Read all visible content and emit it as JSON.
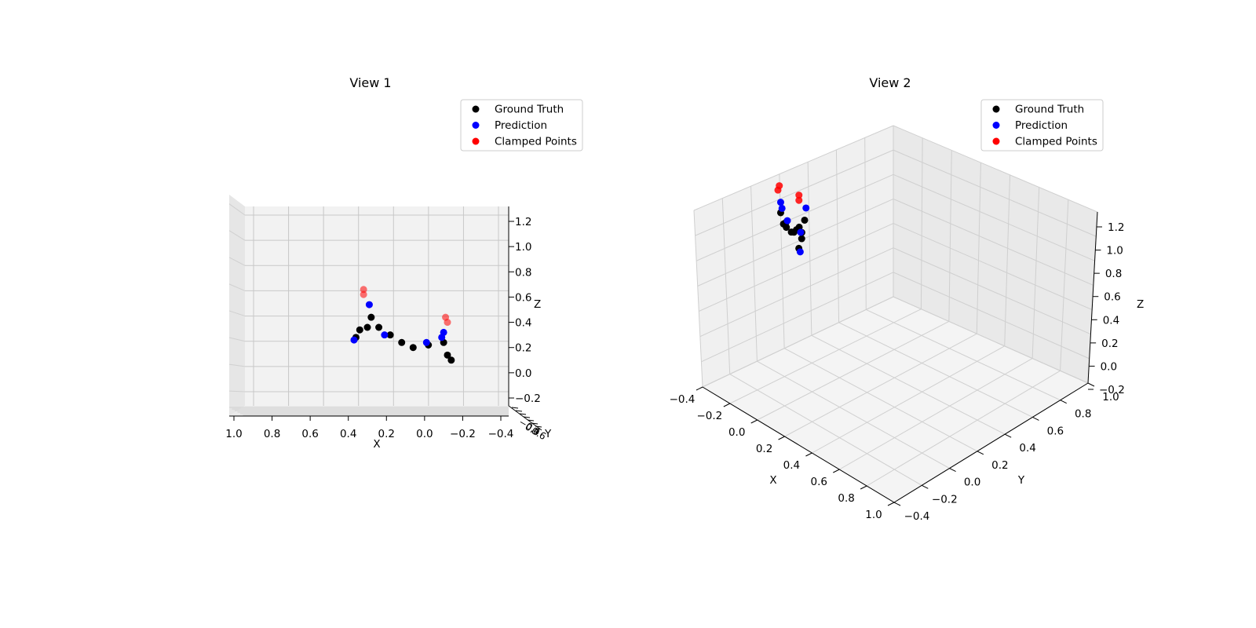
{
  "chart_data": [
    {
      "type": "scatter",
      "title": "View 1",
      "xlabel": "X",
      "ylabel": "Y",
      "zlabel": "Z",
      "xlim": [
        -0.4,
        1.0
      ],
      "zlim": [
        -0.2,
        1.2
      ],
      "x_ticks": [
        "1.0",
        "0.8",
        "0.6",
        "0.4",
        "0.2",
        "0.0",
        "−0.2",
        "−0.4"
      ],
      "z_ticks": [
        "−0.2",
        "0.0",
        "0.2",
        "0.4",
        "0.6",
        "0.8",
        "1.0",
        "1.2"
      ],
      "grid": true,
      "legend_position": "top-right",
      "series": [
        {
          "name": "Ground Truth",
          "color": "#000000",
          "points": [
            {
              "x": 0.36,
              "z": 0.28
            },
            {
              "x": 0.34,
              "z": 0.34
            },
            {
              "x": 0.3,
              "z": 0.36
            },
            {
              "x": 0.28,
              "z": 0.44
            },
            {
              "x": 0.24,
              "z": 0.36
            },
            {
              "x": 0.18,
              "z": 0.3
            },
            {
              "x": 0.12,
              "z": 0.24
            },
            {
              "x": 0.06,
              "z": 0.2
            },
            {
              "x": -0.02,
              "z": 0.22
            },
            {
              "x": -0.1,
              "z": 0.24
            },
            {
              "x": -0.12,
              "z": 0.14
            },
            {
              "x": -0.14,
              "z": 0.1
            }
          ]
        },
        {
          "name": "Prediction",
          "color": "#0000ff",
          "points": [
            {
              "x": 0.37,
              "z": 0.26
            },
            {
              "x": 0.29,
              "z": 0.54
            },
            {
              "x": 0.21,
              "z": 0.3
            },
            {
              "x": -0.01,
              "z": 0.24
            },
            {
              "x": -0.09,
              "z": 0.28
            },
            {
              "x": -0.1,
              "z": 0.32
            }
          ]
        },
        {
          "name": "Clamped Points",
          "color": "#ff0000",
          "points": [
            {
              "x": 0.32,
              "z": 0.66
            },
            {
              "x": 0.32,
              "z": 0.62
            },
            {
              "x": -0.11,
              "z": 0.44
            },
            {
              "x": -0.12,
              "z": 0.4
            }
          ]
        }
      ]
    },
    {
      "type": "scatter",
      "title": "View 2",
      "xlabel": "X",
      "ylabel": "Y",
      "zlabel": "Z",
      "xlim": [
        -0.4,
        1.0
      ],
      "ylim": [
        -0.4,
        1.0
      ],
      "zlim": [
        -0.2,
        1.2
      ],
      "x_ticks": [
        "−0.4",
        "−0.2",
        "0.0",
        "0.2",
        "0.4",
        "0.6",
        "0.8",
        "1.0"
      ],
      "y_ticks": [
        "−0.4",
        "−0.2",
        "0.0",
        "0.2",
        "0.4",
        "0.6",
        "0.8",
        "1.0"
      ],
      "z_ticks": [
        "−0.2",
        "0.0",
        "0.2",
        "0.4",
        "0.6",
        "0.8",
        "1.0",
        "1.2"
      ],
      "grid": true,
      "legend_position": "top-right",
      "series": [
        {
          "name": "Ground Truth",
          "color": "#000000",
          "points": [
            {
              "x": 0.36,
              "y": 0.0,
              "z": 0.28
            },
            {
              "x": 0.34,
              "y": 0.02,
              "z": 0.34
            },
            {
              "x": 0.3,
              "y": 0.04,
              "z": 0.36
            },
            {
              "x": 0.28,
              "y": 0.06,
              "z": 0.44
            },
            {
              "x": 0.24,
              "y": 0.06,
              "z": 0.36
            },
            {
              "x": 0.18,
              "y": 0.08,
              "z": 0.3
            },
            {
              "x": 0.12,
              "y": 0.1,
              "z": 0.24
            },
            {
              "x": 0.06,
              "y": 0.12,
              "z": 0.2
            },
            {
              "x": -0.02,
              "y": 0.14,
              "z": 0.22
            },
            {
              "x": -0.1,
              "y": 0.16,
              "z": 0.24
            },
            {
              "x": -0.12,
              "y": 0.18,
              "z": 0.14
            },
            {
              "x": -0.14,
              "y": 0.2,
              "z": 0.1
            }
          ]
        },
        {
          "name": "Prediction",
          "color": "#0000ff",
          "points": [
            {
              "x": 0.37,
              "y": 0.0,
              "z": 0.26
            },
            {
              "x": 0.29,
              "y": 0.06,
              "z": 0.54
            },
            {
              "x": 0.21,
              "y": 0.08,
              "z": 0.3
            },
            {
              "x": -0.01,
              "y": 0.14,
              "z": 0.24
            },
            {
              "x": -0.09,
              "y": 0.16,
              "z": 0.28
            },
            {
              "x": -0.1,
              "y": 0.16,
              "z": 0.32
            }
          ]
        },
        {
          "name": "Clamped Points",
          "color": "#ff0000",
          "points": [
            {
              "x": 0.32,
              "y": 0.02,
              "z": 0.66
            },
            {
              "x": 0.32,
              "y": 0.02,
              "z": 0.62
            },
            {
              "x": -0.11,
              "y": 0.16,
              "z": 0.44
            },
            {
              "x": -0.12,
              "y": 0.16,
              "z": 0.4
            }
          ]
        }
      ]
    }
  ]
}
